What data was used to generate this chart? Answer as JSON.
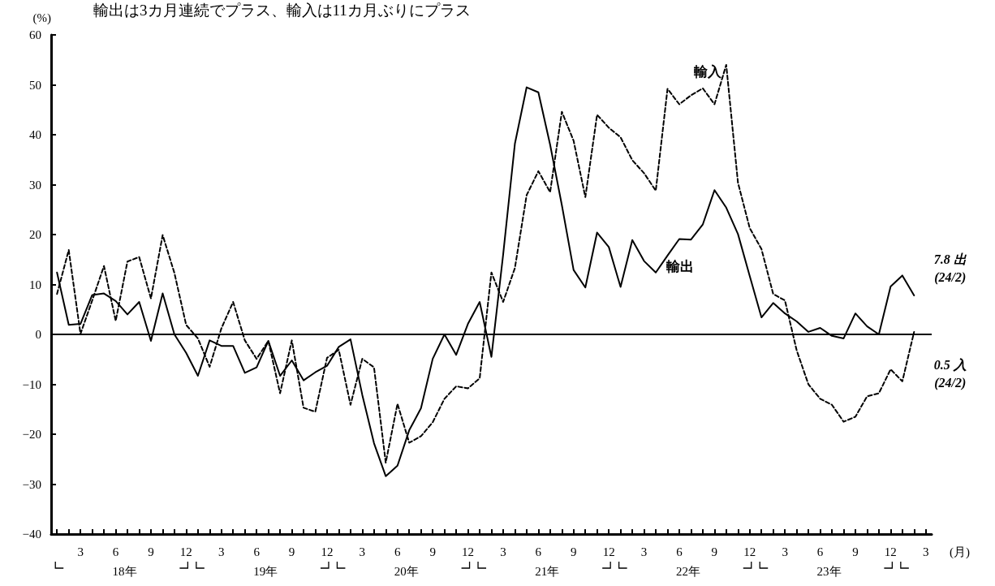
{
  "chart_data": {
    "type": "line",
    "title": "輸出は3カ月連続でプラス、輸入は11カ月ぶりにプラス",
    "ylabel": "(%)",
    "xlabel": "(月)",
    "categories": [
      null,
      null,
      "3",
      null,
      null,
      "6",
      null,
      null,
      "9",
      null,
      null,
      "12",
      null,
      null,
      "3",
      null,
      null,
      "6",
      null,
      null,
      "9",
      null,
      null,
      "12",
      null,
      null,
      "3",
      null,
      null,
      "6",
      null,
      null,
      "9",
      null,
      null,
      "12",
      null,
      null,
      "3",
      null,
      null,
      "6",
      null,
      null,
      "9",
      null,
      null,
      "12",
      null,
      null,
      "3",
      null,
      null,
      "6",
      null,
      null,
      "9",
      null,
      null,
      "12",
      null,
      null,
      "3",
      null,
      null,
      "6",
      null,
      null,
      "9",
      null,
      null,
      "12",
      null,
      null,
      "3"
    ],
    "series": [
      {
        "name": "輸出",
        "color": "#000000",
        "line_style": "solid",
        "values": [
          12.4,
          1.9,
          2.1,
          7.9,
          8.2,
          6.7,
          4.0,
          6.5,
          -1.3,
          8.2,
          0,
          -3.7,
          -8.3,
          -1.2,
          -2.3,
          -2.3,
          -7.7,
          -6.6,
          -1.3,
          -8.3,
          -5.2,
          -9.2,
          -7.6,
          -6.3,
          -2.5,
          -1.0,
          -12.1,
          -21.8,
          -28.4,
          -26.3,
          -19.2,
          -14.8,
          -4.9,
          0,
          -4.1,
          2.1,
          6.5,
          -4.5,
          16,
          38.2,
          49.5,
          48.5,
          38,
          25.9,
          12.9,
          9.4,
          20.4,
          17.5,
          9.5,
          18.9,
          14.7,
          12.4,
          15.8,
          19.1,
          19.0,
          22.0,
          28.9,
          25.4,
          20.1,
          11.7,
          3.4,
          6.3,
          4.2,
          2.6,
          0.5,
          1.3,
          -0.3,
          -0.8,
          4.2,
          1.6,
          0,
          9.6,
          11.8,
          7.8,
          null
        ]
      },
      {
        "name": "輸入",
        "color": "#000000",
        "line_style": "dashed",
        "values": [
          8.1,
          16.9,
          0.1,
          6.8,
          13.7,
          2.7,
          14.6,
          15.5,
          7.2,
          19.9,
          12.3,
          1.9,
          -0.8,
          -6.5,
          1.2,
          6.5,
          -1.2,
          -4.9,
          -1.3,
          -11.8,
          -1.2,
          -14.7,
          -15.5,
          -4.7,
          -3.1,
          -14.1,
          -4.9,
          -6.6,
          -25.7,
          -13.9,
          -21.7,
          -20.4,
          -17.6,
          -12.9,
          -10.4,
          -10.8,
          -8.8,
          12.4,
          6.5,
          13.3,
          27.9,
          32.7,
          28.5,
          44.6,
          38.8,
          27.5,
          44.0,
          41.4,
          39.5,
          34.9,
          32.3,
          28.8,
          49.2,
          46.1,
          47.9,
          49.3,
          46.1,
          54.0,
          30.4,
          21.3,
          17.1,
          8.1,
          6.8,
          -3.2,
          -10.0,
          -12.9,
          -14.1,
          -17.5,
          -16.5,
          -12.4,
          -11.8,
          -7.0,
          -9.4,
          0.5,
          null
        ]
      }
    ],
    "ylim": [
      -40,
      60
    ],
    "yticks": [
      -40,
      -30,
      -20,
      -10,
      0,
      10,
      20,
      30,
      40,
      50,
      60
    ],
    "grid": false,
    "legend": false,
    "marker": "none",
    "ref_lines": [
      {
        "axis": "y",
        "value": 0,
        "color": "#000000",
        "line_style": "solid"
      }
    ],
    "annotations": [
      "18年",
      "19年",
      "20年",
      "21年",
      "22年",
      "23年",
      "7.8 出\n(24/2)",
      "0.5 入\n(24/2)"
    ]
  }
}
